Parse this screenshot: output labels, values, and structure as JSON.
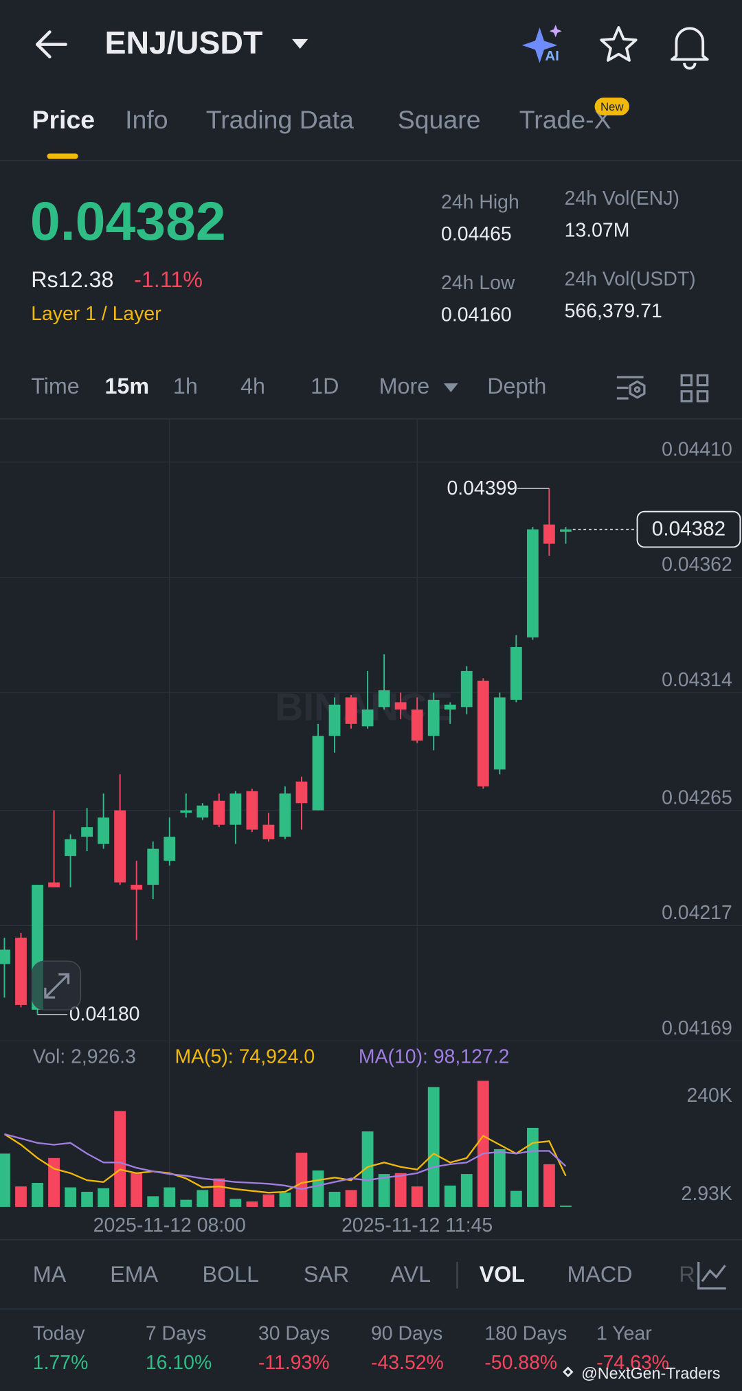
{
  "header": {
    "pair": "ENJ/USDT",
    "ai_badge": "AI"
  },
  "tabs": [
    "Price",
    "Info",
    "Trading Data",
    "Square",
    "Trade-X"
  ],
  "new_badge": "New",
  "ticker": {
    "last_price": "0.04382",
    "fiat_price": "Rs12.38",
    "change": "-1.11%",
    "tag": "Layer 1 / Layer",
    "stats": [
      {
        "label": "24h High",
        "value": "0.04465"
      },
      {
        "label": "24h Low",
        "value": "0.04160"
      },
      {
        "label": "24h Vol(ENJ)",
        "value": "13.07M"
      },
      {
        "label": "24h Vol(USDT)",
        "value": "566,379.71"
      }
    ]
  },
  "intervals": [
    "Time",
    "15m",
    "1h",
    "4h",
    "1D",
    "More",
    "Depth"
  ],
  "chart_data": {
    "type": "candlestick",
    "watermark": "BINANCE",
    "categories": [
      null,
      null,
      null,
      null,
      null,
      null,
      null,
      null,
      null,
      null,
      "2025-11-12 08:00",
      null,
      null,
      null,
      null,
      null,
      null,
      null,
      null,
      null,
      null,
      null,
      null,
      null,
      null,
      "2025-11-12 11:45",
      null,
      null,
      null,
      null,
      null,
      null,
      null,
      null,
      null
    ],
    "open": [
      0.04201,
      0.04212,
      0.04182,
      0.04235,
      0.04246,
      0.04254,
      0.04251,
      0.04265,
      0.04234,
      0.04234,
      0.04244,
      0.04264,
      0.04262,
      0.04269,
      0.04259,
      0.04273,
      0.04259,
      0.04254,
      0.04277,
      0.04265,
      0.04296,
      0.04312,
      0.043,
      0.04308,
      0.0431,
      0.04307,
      0.04296,
      0.04307,
      0.04308,
      0.04319,
      0.04282,
      0.04311,
      0.04337,
      0.04384,
      0.04381
    ],
    "high": [
      0.04212,
      0.04214,
      0.04234,
      0.04265,
      0.04255,
      0.04266,
      0.04272,
      0.0428,
      0.04244,
      0.04252,
      0.04262,
      0.04272,
      0.04268,
      0.04272,
      0.04273,
      0.04274,
      0.04264,
      0.04275,
      0.04279,
      0.04301,
      0.04312,
      0.04313,
      0.04323,
      0.0433,
      0.04314,
      0.04312,
      0.04314,
      0.0431,
      0.04325,
      0.0432,
      0.04314,
      0.04338,
      0.04383,
      0.04399,
      0.04383
    ],
    "low": [
      0.04187,
      0.04183,
      0.0418,
      0.04233,
      0.04233,
      0.04248,
      0.04249,
      0.04234,
      0.04211,
      0.04228,
      0.04242,
      0.04262,
      0.04261,
      0.04258,
      0.04251,
      0.04256,
      0.04252,
      0.04253,
      0.04257,
      0.04265,
      0.04289,
      0.04299,
      0.04299,
      0.04307,
      0.04303,
      0.04293,
      0.0429,
      0.04301,
      0.04305,
      0.04274,
      0.0428,
      0.0431,
      0.04336,
      0.04371,
      0.04376
    ],
    "close": [
      0.04207,
      0.04184,
      0.04234,
      0.04233,
      0.04253,
      0.04258,
      0.04262,
      0.04235,
      0.04232,
      0.04249,
      0.04254,
      0.04265,
      0.04267,
      0.04259,
      0.04272,
      0.04257,
      0.04253,
      0.04272,
      0.04268,
      0.04296,
      0.04309,
      0.04301,
      0.04307,
      0.04315,
      0.04307,
      0.04294,
      0.04311,
      0.04309,
      0.04323,
      0.04275,
      0.04312,
      0.04333,
      0.04382,
      0.04376,
      0.04382
    ],
    "up_color": "#2ebd85",
    "down_color": "#f6465d",
    "ylim": [
      0.04169,
      0.04428
    ],
    "yticks": [
      {
        "value": 0.0441,
        "label": "0.04410"
      },
      0.04362,
      0.04314,
      0.04265,
      0.04217,
      0.04169
    ],
    "grid": true,
    "last_price": 0.04382,
    "high_marker": 0.04399,
    "low_marker": {
      "value": 0.0418,
      "label": "0.04180"
    },
    "volume": [
      128600,
      49300,
      57900,
      117900,
      47100,
      36400,
      45000,
      231400,
      81400,
      25700,
      47100,
      17100,
      40700,
      68600,
      19300,
      12900,
      30000,
      34300,
      130700,
      87900,
      36400,
      40700,
      182100,
      79300,
      81400,
      49300,
      289300,
      51400,
      79300,
      304300,
      139300,
      38600,
      190700,
      102900,
      2926.3
    ],
    "ma5": [
      175700,
      150000,
      117900,
      92100,
      81400,
      64300,
      60000,
      90000,
      81400,
      85700,
      81400,
      68600,
      47100,
      49300,
      42900,
      38600,
      34300,
      36400,
      57900,
      64300,
      70700,
      64300,
      96400,
      107100,
      96400,
      90000,
      128600,
      107100,
      117900,
      171400,
      150000,
      128600,
      154300,
      158600,
      74924
    ],
    "ma10": [
      175700,
      165000,
      154300,
      150000,
      154300,
      128600,
      107100,
      107100,
      94300,
      85700,
      79300,
      75000,
      68600,
      64300,
      60000,
      57900,
      55700,
      51400,
      42900,
      51400,
      60000,
      68600,
      64300,
      70700,
      75000,
      81400,
      96400,
      102900,
      107100,
      128600,
      132900,
      128600,
      135000,
      135000,
      98127.2
    ],
    "ma5_color": "#f0b90b",
    "ma10_color": "#a07fe0",
    "vlim": [
      0,
      347000
    ],
    "vticks": [
      {
        "value": 240000,
        "label": "240K"
      },
      {
        "value": 2930,
        "label": "2.93K"
      }
    ],
    "vol_label": "Vol: 2,926.3",
    "ma5_label": "MA(5): 74,924.0",
    "ma10_label": "MA(10): 98,127.2"
  },
  "indicators": [
    "MA",
    "EMA",
    "BOLL",
    "SAR",
    "AVL",
    "VOL",
    "MACD",
    "R"
  ],
  "performance": [
    {
      "label": "Today",
      "value": "1.77%"
    },
    {
      "label": "7 Days",
      "value": "16.10%"
    },
    {
      "label": "30 Days",
      "value": "-11.93%"
    },
    {
      "label": "90 Days",
      "value": "-43.52%"
    },
    {
      "label": "180 Days",
      "value": "-50.88%"
    },
    {
      "label": "1 Year",
      "value": "-74.63%"
    }
  ],
  "watermark": "@NextGen-Traders"
}
